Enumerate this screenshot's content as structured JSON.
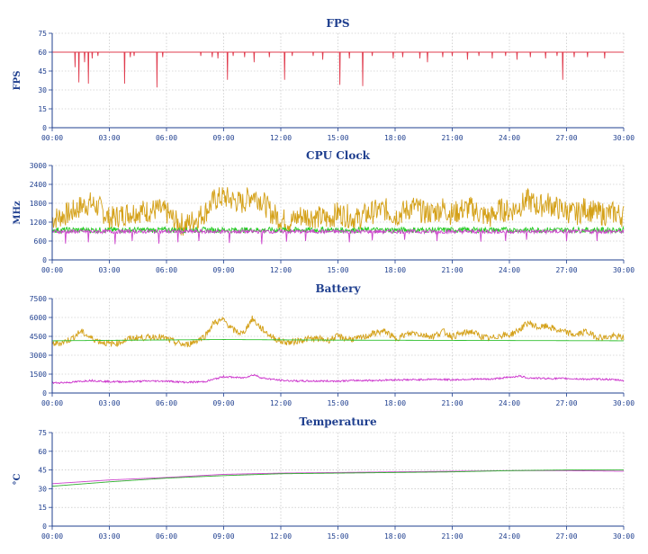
{
  "chart_data": [
    {
      "type": "line",
      "title": "FPS",
      "ylabel": "FPS",
      "ylim": [
        0,
        75
      ],
      "yticks": [
        "0",
        "15",
        "30",
        "45",
        "60",
        "75"
      ],
      "xlim": [
        0,
        30
      ],
      "xticks": [
        "00:00",
        "03:00",
        "06:00",
        "09:00",
        "12:00",
        "15:00",
        "18:00",
        "21:00",
        "24:00",
        "27:00",
        "30:00"
      ],
      "series": [
        {
          "color": "#e03c4e",
          "baseline": 60,
          "dips": [
            [
              1.2,
              48
            ],
            [
              1.4,
              36
            ],
            [
              1.7,
              52
            ],
            [
              1.9,
              35
            ],
            [
              2.1,
              55
            ],
            [
              2.4,
              57
            ],
            [
              3.8,
              35
            ],
            [
              4.1,
              56
            ],
            [
              4.3,
              57
            ],
            [
              5.5,
              32
            ],
            [
              5.8,
              56
            ],
            [
              7.8,
              57
            ],
            [
              8.4,
              56
            ],
            [
              8.7,
              55
            ],
            [
              9.2,
              38
            ],
            [
              9.5,
              57
            ],
            [
              10.1,
              56
            ],
            [
              10.6,
              52
            ],
            [
              11.4,
              56
            ],
            [
              12.2,
              38
            ],
            [
              12.6,
              57
            ],
            [
              13.7,
              57
            ],
            [
              14.2,
              54
            ],
            [
              15.1,
              34
            ],
            [
              15.6,
              55
            ],
            [
              16.3,
              33
            ],
            [
              16.8,
              57
            ],
            [
              17.9,
              55
            ],
            [
              18.4,
              56
            ],
            [
              19.3,
              55
            ],
            [
              19.7,
              52
            ],
            [
              20.5,
              56
            ],
            [
              21.0,
              57
            ],
            [
              21.8,
              54
            ],
            [
              22.4,
              57
            ],
            [
              23.1,
              55
            ],
            [
              23.8,
              57
            ],
            [
              24.4,
              54
            ],
            [
              25.1,
              56
            ],
            [
              25.9,
              55
            ],
            [
              26.5,
              57
            ],
            [
              26.8,
              38
            ],
            [
              27.4,
              56
            ],
            [
              28.1,
              56
            ],
            [
              29.0,
              55
            ]
          ]
        }
      ]
    },
    {
      "type": "line",
      "title": "CPU Clock",
      "ylabel": "MHz",
      "ylim": [
        0,
        3000
      ],
      "yticks": [
        "0",
        "600",
        "1200",
        "1800",
        "2400",
        "3000"
      ],
      "xlim": [
        0,
        30
      ],
      "xticks": [
        "00:00",
        "03:00",
        "06:00",
        "09:00",
        "12:00",
        "15:00",
        "18:00",
        "21:00",
        "24:00",
        "27:00",
        "30:00"
      ],
      "series": [
        {
          "color": "#d4a017",
          "x": [
            0,
            0.5,
            1,
            1.5,
            2,
            2.5,
            3,
            3.5,
            4,
            4.5,
            5,
            5.5,
            6,
            6.5,
            7,
            7.5,
            8,
            8.5,
            9,
            9.5,
            10,
            10.5,
            11,
            11.5,
            12,
            12.5,
            13,
            13.5,
            14,
            14.5,
            15,
            15.5,
            16,
            16.5,
            17,
            17.5,
            18,
            18.5,
            19,
            19.5,
            20,
            20.5,
            21,
            21.5,
            22,
            22.5,
            23,
            23.5,
            24,
            24.5,
            25,
            25.5,
            26,
            26.5,
            27,
            27.5,
            28,
            28.5,
            29,
            29.5,
            30
          ],
          "values": [
            1300,
            1400,
            1500,
            1700,
            1800,
            1650,
            1300,
            1400,
            1500,
            1550,
            1550,
            1600,
            1500,
            1200,
            1100,
            1300,
            1500,
            1900,
            2000,
            1900,
            1800,
            2100,
            1900,
            1500,
            1300,
            1200,
            1400,
            1400,
            1350,
            1300,
            1500,
            1400,
            1300,
            1450,
            1550,
            1600,
            1400,
            1550,
            1700,
            1500,
            1500,
            1650,
            1450,
            1600,
            1650,
            1450,
            1350,
            1600,
            1550,
            1700,
            1900,
            1700,
            1800,
            1650,
            1550,
            1450,
            1650,
            1500,
            1450,
            1500,
            1400
          ],
          "noise": 380
        },
        {
          "color": "#20cc20",
          "x": [
            0,
            30
          ],
          "values": [
            950,
            950
          ],
          "noise": 90
        },
        {
          "color": "#cc44cc",
          "x": [
            0,
            30
          ],
          "values": [
            900,
            900
          ],
          "noise": 60,
          "dips": [
            [
              0.7,
              520
            ],
            [
              1.9,
              560
            ],
            [
              3.3,
              500
            ],
            [
              4.2,
              600
            ],
            [
              5.6,
              520
            ],
            [
              6.6,
              560
            ],
            [
              7.7,
              600
            ],
            [
              9.3,
              540
            ],
            [
              11.0,
              500
            ],
            [
              12.3,
              580
            ],
            [
              13.3,
              600
            ],
            [
              15.6,
              560
            ],
            [
              16.8,
              620
            ],
            [
              18.5,
              640
            ],
            [
              20.2,
              600
            ],
            [
              22.5,
              580
            ],
            [
              23.8,
              600
            ],
            [
              24.9,
              640
            ],
            [
              27.0,
              600
            ],
            [
              28.6,
              600
            ]
          ]
        }
      ]
    },
    {
      "type": "line",
      "title": "Battery",
      "ylabel": "",
      "ylim": [
        0,
        7500
      ],
      "yticks": [
        "0",
        "1500",
        "3000",
        "4500",
        "6000",
        "7500"
      ],
      "xlim": [
        0,
        30
      ],
      "xticks": [
        "00:00",
        "03:00",
        "06:00",
        "09:00",
        "12:00",
        "15:00",
        "18:00",
        "21:00",
        "24:00",
        "27:00",
        "30:00"
      ],
      "series": [
        {
          "color": "#d4a017",
          "x": [
            0,
            0.5,
            1,
            1.5,
            2,
            2.5,
            3,
            3.5,
            4,
            4.5,
            5,
            5.5,
            6,
            6.5,
            7,
            7.5,
            8,
            8.5,
            9,
            9.5,
            10,
            10.5,
            11,
            11.5,
            12,
            12.5,
            13,
            13.5,
            14,
            14.5,
            15,
            15.5,
            16,
            16.5,
            17,
            17.5,
            18,
            18.5,
            19,
            19.5,
            20,
            20.5,
            21,
            21.5,
            22,
            22.5,
            23,
            23.5,
            24,
            24.5,
            25,
            25.5,
            26,
            26.5,
            27,
            27.5,
            28,
            28.5,
            29,
            29.5,
            30
          ],
          "values": [
            3900,
            4000,
            4300,
            4900,
            4400,
            4100,
            3900,
            4000,
            4300,
            4400,
            4400,
            4500,
            4300,
            4000,
            3800,
            4100,
            4500,
            5600,
            5800,
            5000,
            4700,
            5900,
            5100,
            4500,
            4100,
            4000,
            4200,
            4300,
            4300,
            4200,
            4500,
            4300,
            4300,
            4500,
            4800,
            4900,
            4300,
            4600,
            4800,
            4600,
            4500,
            4900,
            4500,
            4700,
            4900,
            4500,
            4300,
            4600,
            4600,
            5000,
            5600,
            5200,
            5300,
            5000,
            4800,
            4600,
            4900,
            4500,
            4400,
            4500,
            4400
          ],
          "noise": 260
        },
        {
          "color": "#30c030",
          "x": [
            0,
            9,
            15,
            30
          ],
          "values": [
            4150,
            4250,
            4200,
            4150
          ],
          "noise": 0
        },
        {
          "color": "#cc33cc",
          "x": [
            0,
            1,
            2,
            3,
            4,
            5,
            6,
            7,
            8,
            9,
            10,
            10.6,
            11,
            12,
            13,
            14,
            15,
            16,
            17,
            18,
            19,
            20,
            21,
            22,
            23,
            24,
            24.5,
            25,
            26,
            27,
            28,
            29,
            30
          ],
          "values": [
            800,
            850,
            1000,
            900,
            900,
            950,
            950,
            850,
            900,
            1300,
            1200,
            1450,
            1200,
            1000,
            950,
            950,
            950,
            1000,
            1000,
            1050,
            1050,
            1100,
            1050,
            1100,
            1100,
            1250,
            1350,
            1200,
            1150,
            1150,
            1100,
            1100,
            1000
          ],
          "noise": 70
        }
      ]
    },
    {
      "type": "line",
      "title": "Temperature",
      "ylabel": "°C",
      "ylim": [
        0,
        75
      ],
      "yticks": [
        "0",
        "15",
        "30",
        "45",
        "60",
        "75"
      ],
      "xlim": [
        0,
        30
      ],
      "xticks": [
        "00:00",
        "03:00",
        "06:00",
        "09:00",
        "12:00",
        "15:00",
        "18:00",
        "21:00",
        "24:00",
        "27:00",
        "30:00"
      ],
      "series": [
        {
          "color": "#cc44cc",
          "x": [
            0,
            3,
            6,
            9,
            12,
            15,
            18,
            21,
            24,
            27,
            30
          ],
          "values": [
            34,
            37,
            39,
            41.5,
            42.5,
            43,
            43.5,
            44,
            44.5,
            44.5,
            44
          ],
          "noise": 0
        },
        {
          "color": "#30b030",
          "x": [
            0,
            3,
            6,
            9,
            12,
            15,
            18,
            21,
            24,
            27,
            30
          ],
          "values": [
            32,
            35.5,
            38.5,
            40.5,
            42,
            42.5,
            43,
            43.5,
            44.5,
            45,
            45
          ],
          "noise": 0
        }
      ]
    }
  ]
}
